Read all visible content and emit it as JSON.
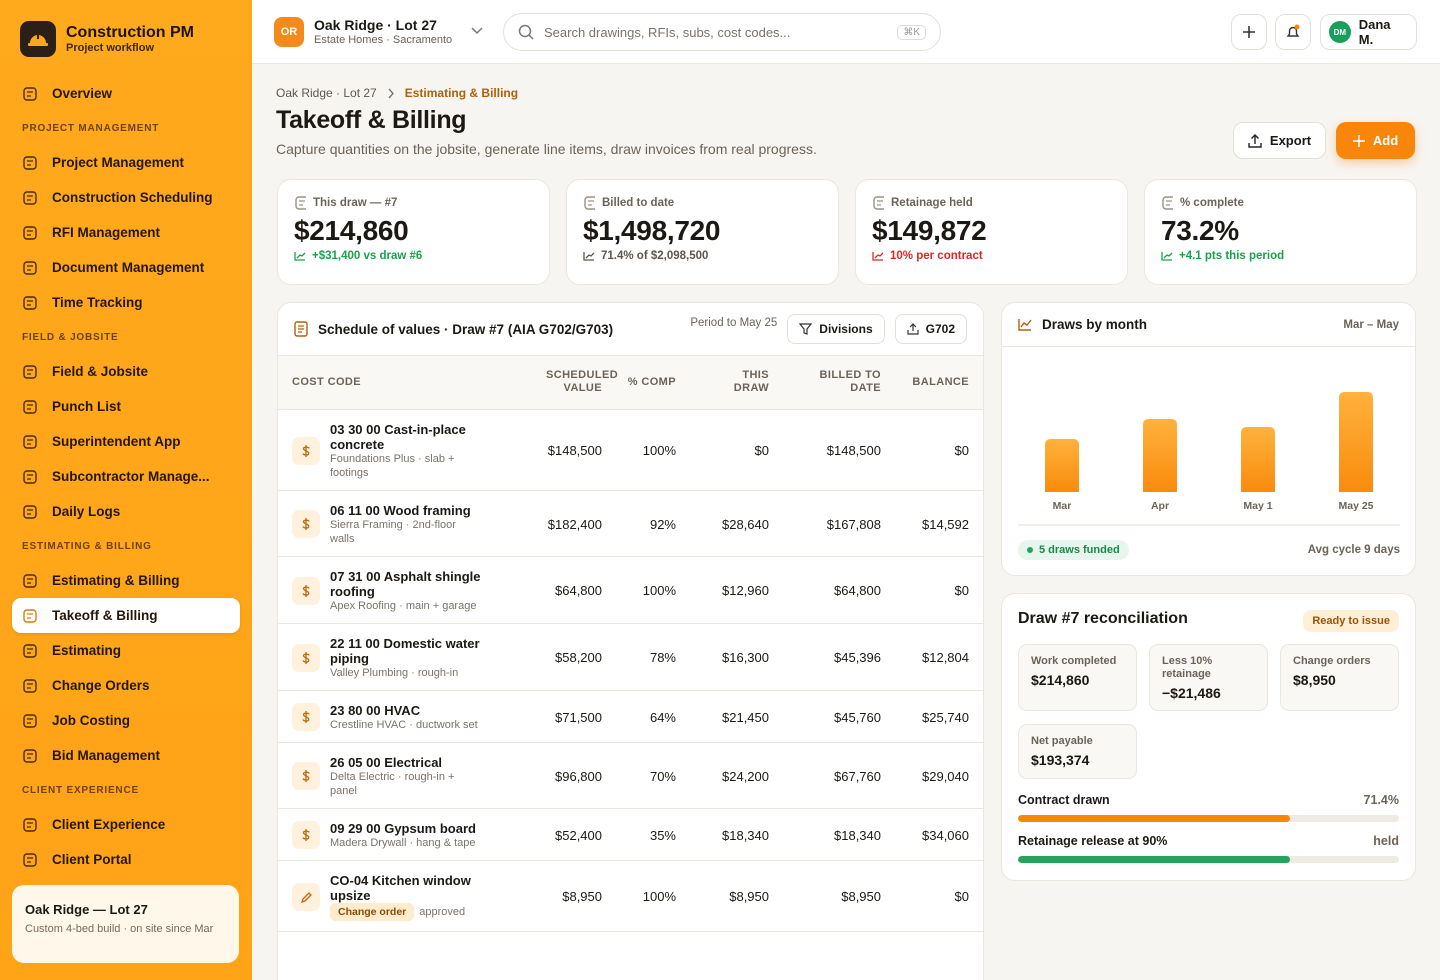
{
  "sidebar": {
    "brand": {
      "title": "Construction PM",
      "subtitle": "Project workflow"
    },
    "overview": "Overview",
    "sections": [
      {
        "heading": "PROJECT MANAGEMENT",
        "items": [
          {
            "label": "Project Management"
          },
          {
            "label": "Construction Scheduling"
          },
          {
            "label": "RFI Management"
          },
          {
            "label": "Document Management"
          },
          {
            "label": "Time Tracking"
          }
        ]
      },
      {
        "heading": "FIELD & JOBSITE",
        "items": [
          {
            "label": "Field & Jobsite"
          },
          {
            "label": "Punch List"
          },
          {
            "label": "Superintendent App"
          },
          {
            "label": "Subcontractor Manage..."
          },
          {
            "label": "Daily Logs"
          }
        ]
      },
      {
        "heading": "ESTIMATING & BILLING",
        "items": [
          {
            "label": "Estimating & Billing"
          },
          {
            "label": "Takeoff & Billing",
            "active": true
          },
          {
            "label": "Estimating"
          },
          {
            "label": "Change Orders"
          },
          {
            "label": "Job Costing"
          },
          {
            "label": "Bid Management"
          }
        ]
      },
      {
        "heading": "CLIENT EXPERIENCE",
        "items": [
          {
            "label": "Client Experience"
          },
          {
            "label": "Client Portal"
          }
        ]
      }
    ],
    "project_card": {
      "title": "Oak Ridge — Lot 27",
      "subtitle": "Custom 4-bed build · on site since Mar"
    }
  },
  "topbar": {
    "badge": "OR",
    "project": "Oak Ridge · Lot 27",
    "project_sub": "Estate Homes · Sacramento",
    "search": "Search drawings, RFIs, subs, cost codes...",
    "shortcut": "⌘K",
    "user_initials": "DM",
    "user_name": "Dana M."
  },
  "header": {
    "breadcrumb": [
      "Oak Ridge · Lot 27",
      "Estimating & Billing"
    ],
    "title": "Takeoff & Billing",
    "subtitle": "Capture quantities on the jobsite, generate line items, draw invoices from real progress.",
    "export": "Export",
    "add": "Add"
  },
  "kpis": [
    {
      "label": "This draw — #7",
      "value": "$214,860",
      "delta": "+$31,400 vs draw #6",
      "tone": "up"
    },
    {
      "label": "Billed to date",
      "value": "$1,498,720",
      "delta": "71.4% of $2,098,500",
      "tone": "neutral"
    },
    {
      "label": "Retainage held",
      "value": "$149,872",
      "delta": "10% per contract",
      "tone": "down"
    },
    {
      "label": "% complete",
      "value": "73.2%",
      "delta": "+4.1 pts this period",
      "tone": "up"
    }
  ],
  "sov": {
    "title": "Schedule of values · Draw #7 (AIA G702/G703)",
    "period": "Period to May 25",
    "buttons": [
      "Divisions",
      "G702"
    ],
    "columns": [
      "COST CODE",
      "SCHEDULED VALUE",
      "% COMP",
      "THIS DRAW",
      "BILLED TO DATE",
      "BALANCE"
    ],
    "rows": [
      {
        "code": "03 30 00 Cast-in-place concrete",
        "sub": "Foundations Plus · slab + footings",
        "cells": [
          "$148,500",
          "100%",
          "$0",
          "$148,500",
          "$0"
        ]
      },
      {
        "code": "06 11 00 Wood framing",
        "sub": "Sierra Framing · 2nd-floor walls",
        "cells": [
          "$182,400",
          "92%",
          "$28,640",
          "$167,808",
          "$14,592"
        ]
      },
      {
        "code": "07 31 00 Asphalt shingle roofing",
        "sub": "Apex Roofing · main + garage",
        "cells": [
          "$64,800",
          "100%",
          "$12,960",
          "$64,800",
          "$0"
        ]
      },
      {
        "code": "22 11 00 Domestic water piping",
        "sub": "Valley Plumbing · rough-in",
        "cells": [
          "$58,200",
          "78%",
          "$16,300",
          "$45,396",
          "$12,804"
        ]
      },
      {
        "code": "23 80 00 HVAC",
        "sub": "Crestline HVAC · ductwork set",
        "cells": [
          "$71,500",
          "64%",
          "$21,450",
          "$45,760",
          "$25,740"
        ]
      },
      {
        "code": "26 05 00 Electrical",
        "sub": "Delta Electric · rough-in + panel",
        "cells": [
          "$96,800",
          "70%",
          "$24,200",
          "$67,760",
          "$29,040"
        ]
      },
      {
        "code": "09 29 00 Gypsum board",
        "sub": "Madera Drywall · hang & tape",
        "cells": [
          "$52,400",
          "35%",
          "$18,340",
          "$18,340",
          "$34,060"
        ]
      },
      {
        "code": "CO-04 Kitchen window upsize",
        "tag": "Change order",
        "sub": "approved",
        "cells": [
          "$8,950",
          "100%",
          "$8,950",
          "$8,950",
          "$0"
        ]
      }
    ]
  },
  "draws": {
    "type": "bar",
    "title": "Draws by month",
    "range": "Mar – May",
    "categories": [
      "Mar",
      "Apr",
      "May 1",
      "May 25"
    ],
    "values": [
      53,
      73,
      65,
      100
    ],
    "ylim": [
      0,
      140
    ],
    "badge": "5 draws funded",
    "note": "Avg cycle 9 days"
  },
  "recon": {
    "title": "Draw #7 reconciliation",
    "status": "Ready to issue",
    "tiles": [
      {
        "label": "Work completed",
        "value": "$214,860"
      },
      {
        "label": "Less 10% retainage",
        "value": "−$21,486"
      },
      {
        "label": "Change orders",
        "value": "$8,950"
      },
      {
        "label": "Net payable",
        "value": "$193,374"
      }
    ],
    "progress": [
      {
        "label": "Contract drawn",
        "status": "71.4%",
        "value": 71.4,
        "color": "#f7860b"
      },
      {
        "label": "Retainage release at 90%",
        "status": "held",
        "value": 71.4,
        "color": "#22a55a"
      }
    ]
  }
}
